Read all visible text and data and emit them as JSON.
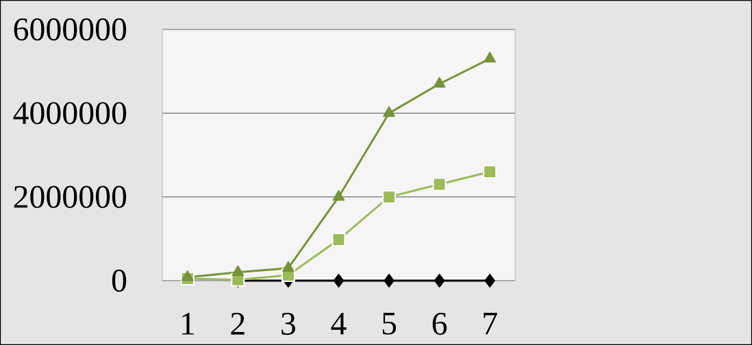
{
  "chart_data": {
    "type": "line",
    "categories": [
      "1",
      "2",
      "3",
      "4",
      "5",
      "6",
      "7"
    ],
    "series": [
      {
        "color": "#000000",
        "marker": "diamond",
        "values": [
          null,
          0,
          0,
          0,
          0,
          0,
          0
        ]
      },
      {
        "color": "#9bbb59",
        "marker": "square",
        "values": [
          50000,
          20000,
          130000,
          980000,
          2000000,
          2300000,
          2600000
        ]
      },
      {
        "color": "#77933c",
        "marker": "triangle",
        "values": [
          80000,
          200000,
          300000,
          2000000,
          4000000,
          4700000,
          5300000
        ]
      }
    ],
    "ylim": [
      0,
      6000000
    ],
    "yticks": [
      0,
      2000000,
      4000000,
      6000000
    ],
    "grid": "y",
    "line_style": "solid"
  }
}
